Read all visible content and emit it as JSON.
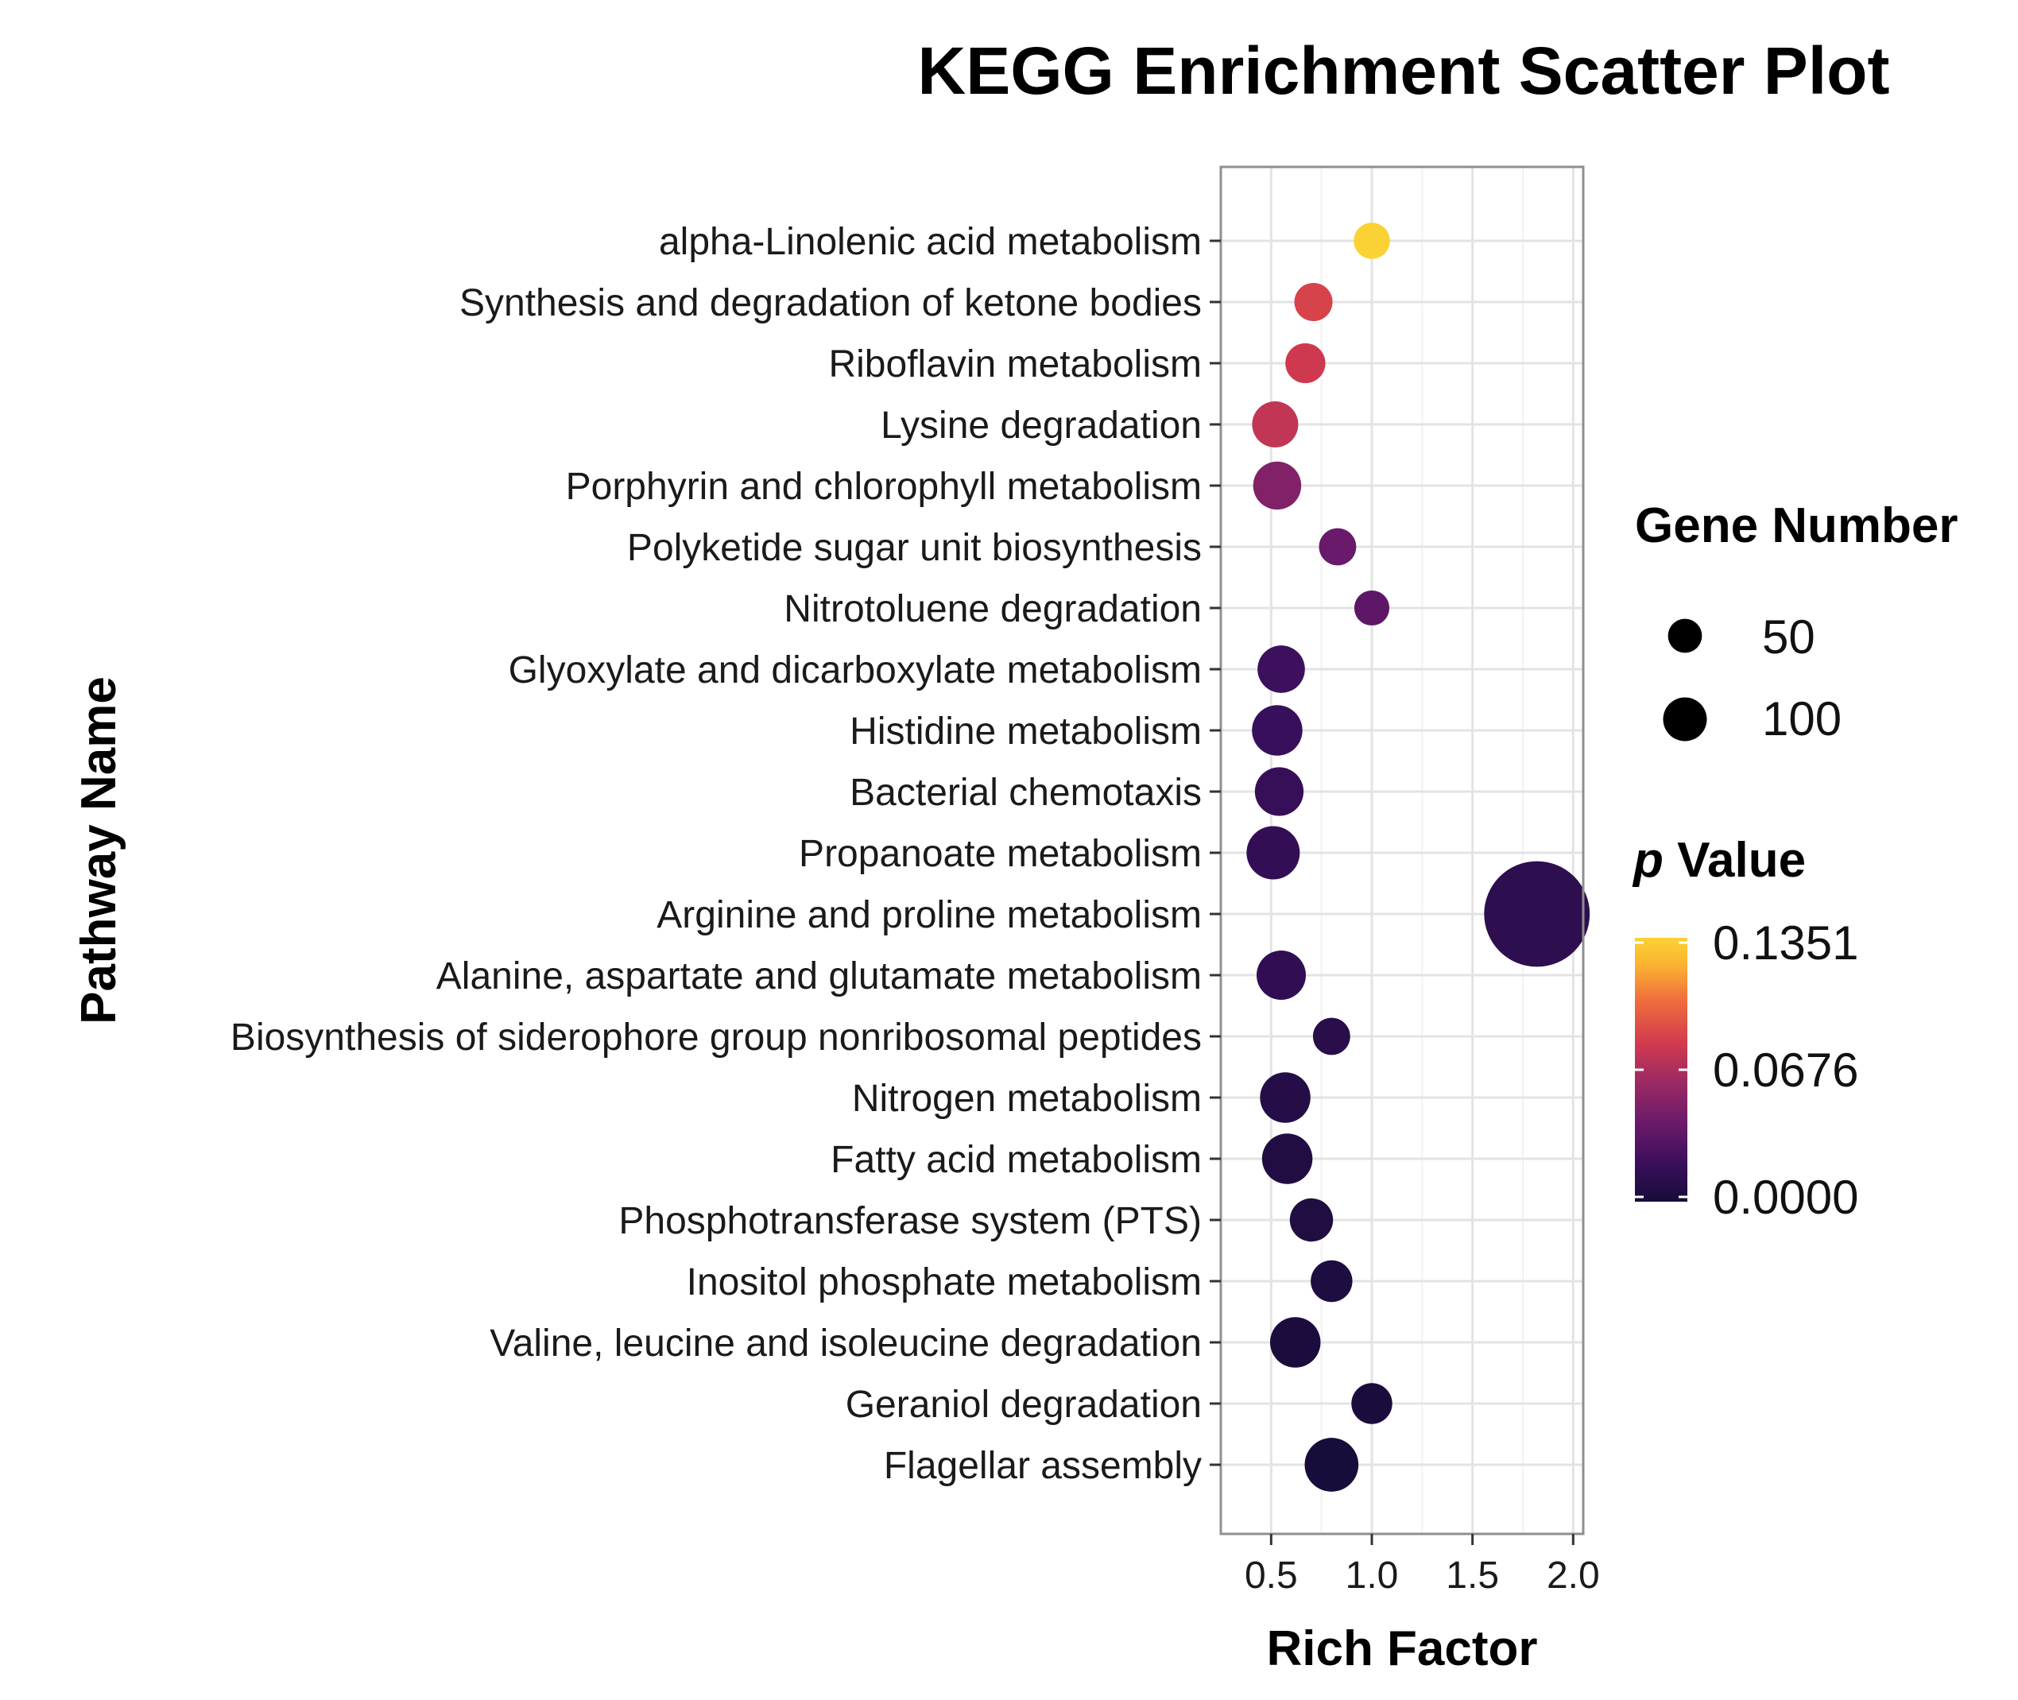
{
  "chart_data": {
    "type": "scatter",
    "title": "KEGG Enrichment Scatter Plot",
    "xlabel": "Rich Factor",
    "ylabel": "Pathway Name",
    "xlim": [
      0.25,
      2.05
    ],
    "xticks": [
      0.5,
      1.0,
      1.5,
      2.0
    ],
    "xtick_labels": [
      "0.5",
      "1.0",
      "1.5",
      "2.0"
    ],
    "grid": true,
    "pathways": [
      {
        "name": "alpha-Linolenic acid metabolism",
        "rich_factor": 1.0,
        "gene_number": 8,
        "p_value": 0.1351
      },
      {
        "name": "Synthesis and degradation of ketone bodies",
        "rich_factor": 0.71,
        "gene_number": 10,
        "p_value": 0.085
      },
      {
        "name": "Riboflavin metabolism",
        "rich_factor": 0.67,
        "gene_number": 12,
        "p_value": 0.08
      },
      {
        "name": "Lysine degradation",
        "rich_factor": 0.52,
        "gene_number": 20,
        "p_value": 0.075
      },
      {
        "name": "Porphyrin and chlorophyll metabolism",
        "rich_factor": 0.53,
        "gene_number": 23,
        "p_value": 0.05
      },
      {
        "name": "Polyketide sugar unit biosynthesis",
        "rich_factor": 0.83,
        "gene_number": 9,
        "p_value": 0.04
      },
      {
        "name": "Nitrotoluene degradation",
        "rich_factor": 1.0,
        "gene_number": 7,
        "p_value": 0.035
      },
      {
        "name": "Glyoxylate and dicarboxylate metabolism",
        "rich_factor": 0.55,
        "gene_number": 22,
        "p_value": 0.02
      },
      {
        "name": "Histidine metabolism",
        "rich_factor": 0.53,
        "gene_number": 27,
        "p_value": 0.018
      },
      {
        "name": "Bacterial chemotaxis",
        "rich_factor": 0.54,
        "gene_number": 24,
        "p_value": 0.017
      },
      {
        "name": "Propanoate metabolism",
        "rich_factor": 0.51,
        "gene_number": 32,
        "p_value": 0.015
      },
      {
        "name": "Arginine and proline metabolism",
        "rich_factor": 1.82,
        "gene_number": 205,
        "p_value": 0.012
      },
      {
        "name": "Alanine, aspartate and glutamate metabolism",
        "rich_factor": 0.55,
        "gene_number": 25,
        "p_value": 0.014
      },
      {
        "name": "Biosynthesis of siderophore group nonribosomal peptides",
        "rich_factor": 0.8,
        "gene_number": 9,
        "p_value": 0.01
      },
      {
        "name": "Nitrogen metabolism",
        "rich_factor": 0.57,
        "gene_number": 27,
        "p_value": 0.008
      },
      {
        "name": "Fatty acid metabolism",
        "rich_factor": 0.58,
        "gene_number": 27,
        "p_value": 0.006
      },
      {
        "name": "Phosphotransferase system (PTS)",
        "rich_factor": 0.7,
        "gene_number": 16,
        "p_value": 0.005
      },
      {
        "name": "Inositol phosphate metabolism",
        "rich_factor": 0.8,
        "gene_number": 14,
        "p_value": 0.004
      },
      {
        "name": "Valine, leucine and isoleucine degradation",
        "rich_factor": 0.62,
        "gene_number": 27,
        "p_value": 0.003
      },
      {
        "name": "Geraniol degradation",
        "rich_factor": 1.0,
        "gene_number": 13,
        "p_value": 0.002
      },
      {
        "name": "Flagellar assembly",
        "rich_factor": 0.8,
        "gene_number": 33,
        "p_value": 0.001
      }
    ],
    "size_legend": {
      "title": "Gene Number",
      "entries": [
        {
          "label": "50",
          "value": 50
        },
        {
          "label": "100",
          "value": 100
        }
      ]
    },
    "color_legend": {
      "title_italic": "p",
      "title_rest": " Value",
      "min": 0.0,
      "max": 0.1351,
      "tick_labels": [
        "0.1351",
        "0.0676",
        "0.0000"
      ],
      "tick_values": [
        0.1351,
        0.0676,
        0.0
      ],
      "colors": [
        "#160c38",
        "#3a0f5c",
        "#6b1a6a",
        "#9e2a63",
        "#d13a4e",
        "#ef6c3c",
        "#fbb432",
        "#fbd233"
      ]
    }
  }
}
